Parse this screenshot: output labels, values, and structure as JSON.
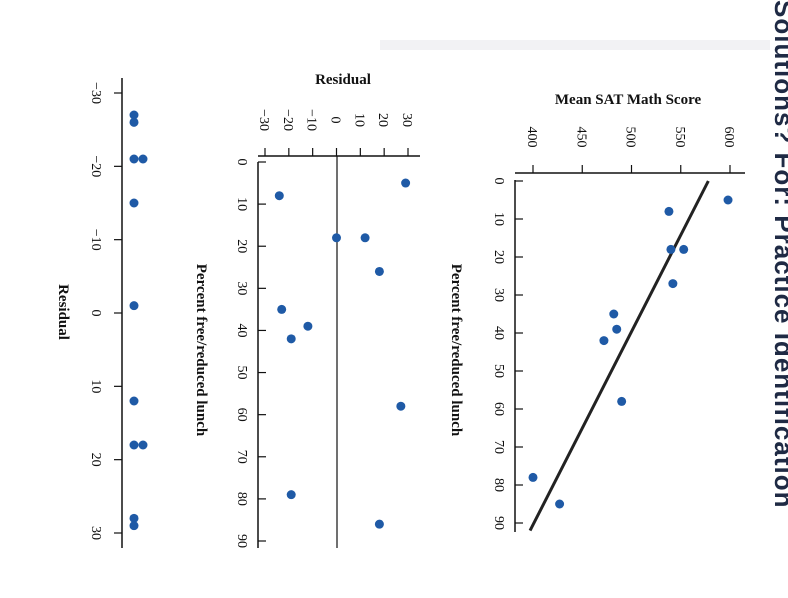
{
  "side_caption": "Solutions? For: Practice Identification",
  "colors": {
    "point": "#1f5aa6",
    "line": "#222222",
    "axis": "#111111"
  },
  "chart_data": [
    {
      "type": "scatter",
      "title": "",
      "xlabel": "Percent free/reduced lunch",
      "ylabel": "Mean SAT Math Score",
      "xlim": [
        0,
        90
      ],
      "ylim": [
        400,
        600
      ],
      "xticks": [
        "0",
        "10",
        "20",
        "30",
        "40",
        "50",
        "60",
        "70",
        "80",
        "90"
      ],
      "yticks": [
        "400",
        "450",
        "500",
        "550",
        "600"
      ],
      "points": [
        {
          "x": 5,
          "y": 598
        },
        {
          "x": 8,
          "y": 538
        },
        {
          "x": 18,
          "y": 553
        },
        {
          "x": 18,
          "y": 540
        },
        {
          "x": 27,
          "y": 542
        },
        {
          "x": 35,
          "y": 482
        },
        {
          "x": 39,
          "y": 485
        },
        {
          "x": 42,
          "y": 472
        },
        {
          "x": 58,
          "y": 490
        },
        {
          "x": 78,
          "y": 400
        },
        {
          "x": 85,
          "y": 427
        }
      ],
      "regression_line": {
        "x": [
          0,
          92
        ],
        "y": [
          578,
          397
        ]
      }
    },
    {
      "type": "scatter",
      "title": "",
      "xlabel": "Percent free/reduced lunch",
      "ylabel": "Residual",
      "xlim": [
        0,
        90
      ],
      "ylim": [
        -30,
        30
      ],
      "xticks": [
        "0",
        "10",
        "20",
        "30",
        "40",
        "50",
        "60",
        "70",
        "80",
        "90"
      ],
      "yticks": [
        "−30",
        "−20",
        "−10",
        "0",
        "10",
        "20",
        "30"
      ],
      "zero_line": true,
      "points": [
        {
          "x": 5,
          "y": 29
        },
        {
          "x": 8,
          "y": -24
        },
        {
          "x": 18,
          "y": 0
        },
        {
          "x": 18,
          "y": 12
        },
        {
          "x": 26,
          "y": 18
        },
        {
          "x": 35,
          "y": -23
        },
        {
          "x": 39,
          "y": -12
        },
        {
          "x": 42,
          "y": -19
        },
        {
          "x": 58,
          "y": 27
        },
        {
          "x": 79,
          "y": -19
        },
        {
          "x": 86,
          "y": 18
        }
      ]
    },
    {
      "type": "scatter",
      "title": "",
      "xlabel": "Residual",
      "xlim": [
        -30,
        30
      ],
      "xticks": [
        "−30",
        "−20",
        "−10",
        "0",
        "10",
        "20",
        "30"
      ],
      "points": [
        {
          "x": -27,
          "y": 0
        },
        {
          "x": -26,
          "y": 0
        },
        {
          "x": -21,
          "y": 0
        },
        {
          "x": -21,
          "y": 1
        },
        {
          "x": -15,
          "y": 0
        },
        {
          "x": -1,
          "y": 0
        },
        {
          "x": 12,
          "y": 0
        },
        {
          "x": 18,
          "y": 0
        },
        {
          "x": 18,
          "y": 1
        },
        {
          "x": 28,
          "y": 0
        },
        {
          "x": 29,
          "y": 0
        }
      ]
    }
  ]
}
